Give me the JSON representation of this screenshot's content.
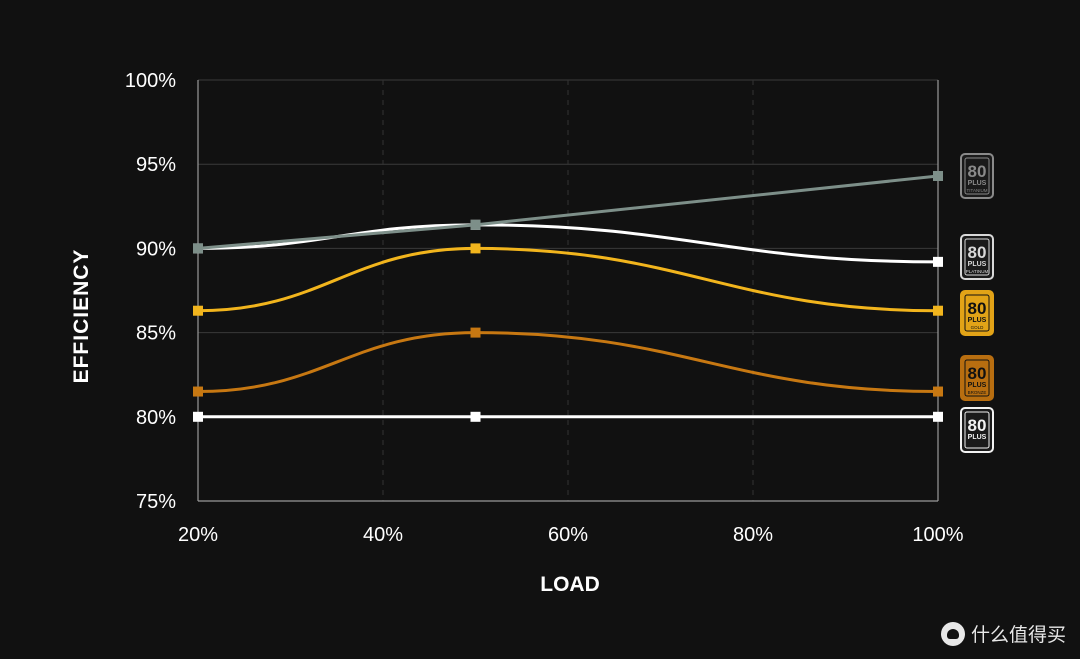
{
  "chart_data": {
    "type": "line",
    "xlabel": "LOAD",
    "ylabel": "EFFICIENCY",
    "xlim": [
      20,
      100
    ],
    "ylim": [
      75,
      100
    ],
    "x_ticks": [
      "20%",
      "40%",
      "60%",
      "80%",
      "100%"
    ],
    "x_tick_values": [
      20,
      40,
      60,
      80,
      100
    ],
    "y_ticks": [
      "100%",
      "95%",
      "90%",
      "85%",
      "80%",
      "75%"
    ],
    "y_tick_values": [
      100,
      95,
      90,
      85,
      80,
      75
    ],
    "grid": "horizontal solid, vertical dashed",
    "series": [
      {
        "name": "TITANIUM",
        "color": "#7d8f89",
        "x": [
          20,
          50,
          100
        ],
        "y": [
          90,
          91.4,
          94.3
        ]
      },
      {
        "name": "PLATINUM",
        "color": "#ffffff",
        "x": [
          20,
          50,
          100
        ],
        "y": [
          90,
          91.4,
          89.2
        ]
      },
      {
        "name": "GOLD",
        "color": "#f2b51d",
        "x": [
          20,
          50,
          100
        ],
        "y": [
          86.3,
          90,
          86.3
        ]
      },
      {
        "name": "BRONZE",
        "color": "#c77812",
        "x": [
          20,
          50,
          100
        ],
        "y": [
          81.5,
          85,
          81.5
        ]
      },
      {
        "name": "",
        "color": "#ffffff",
        "x": [
          20,
          50,
          100
        ],
        "y": [
          80,
          80,
          80
        ]
      }
    ],
    "badges": [
      {
        "number": "80",
        "brand": "PLUS",
        "tier": "TITANIUM",
        "color": "#8a8a8a",
        "value": 94.3
      },
      {
        "number": "80",
        "brand": "PLUS",
        "tier": "PLATINUM",
        "color": "#d8d8d8",
        "value": 89.2
      },
      {
        "number": "80",
        "brand": "PLUS",
        "tier": "GOLD",
        "color": "#e2a317",
        "value": 86.3
      },
      {
        "number": "80",
        "brand": "PLUS",
        "tier": "BRONZE",
        "color": "#b86e10",
        "value": 81.5
      },
      {
        "number": "80",
        "brand": "PLUS",
        "tier": "",
        "color": "#f2f2f2",
        "value": 80
      }
    ]
  },
  "watermark": {
    "icon": "zhide-logo-icon",
    "text": "什么值得买"
  }
}
